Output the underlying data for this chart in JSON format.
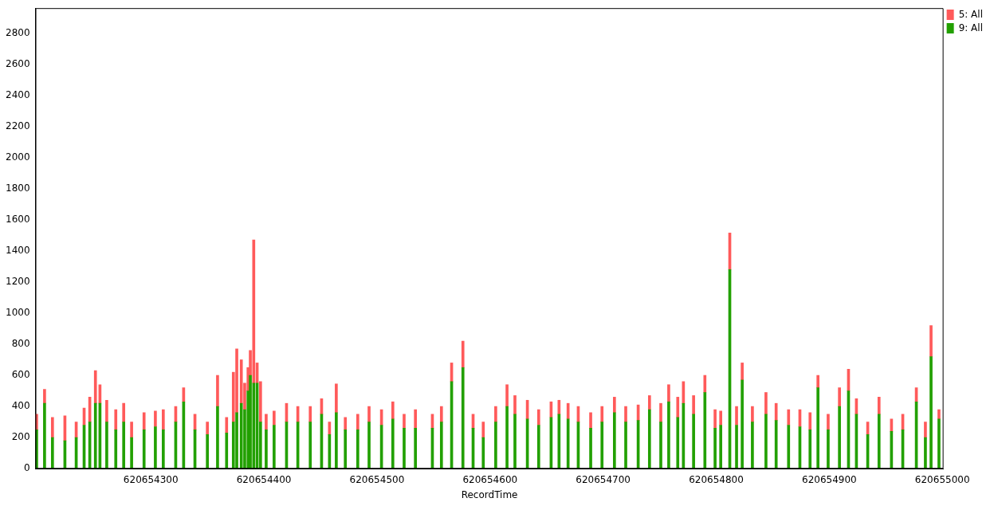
{
  "chart_data": {
    "type": "bar",
    "stacked": true,
    "xlabel": "RecordTime",
    "legend": "top right",
    "x": [
      620654199,
      620654206,
      620654213,
      620654224,
      620654234,
      620654241,
      620654246,
      620654251,
      620654255,
      620654261,
      620654269,
      620654276,
      620654283,
      620654294,
      620654304,
      620654311,
      620654322,
      620654329,
      620654339,
      620654350,
      620654359,
      620654367,
      620654373,
      620654376,
      620654380,
      620654383,
      620654386,
      620654388,
      620654391,
      620654394,
      620654397,
      620654402,
      620654409,
      620654420,
      620654430,
      620654441,
      620654451,
      620654458,
      620654464,
      620654472,
      620654483,
      620654493,
      620654504,
      620654514,
      620654524,
      620654534,
      620654549,
      620654557,
      620654566,
      620654576,
      620654585,
      620654594,
      620654605,
      620654615,
      620654622,
      620654633,
      620654643,
      620654654,
      620654661,
      620654669,
      620654678,
      620654689,
      620654699,
      620654710,
      620654720,
      620654731,
      620654741,
      620654751,
      620654758,
      620654766,
      620654771,
      620654780,
      620654790,
      620654799,
      620654804,
      620654812,
      620654818,
      620654823,
      620654832,
      620654844,
      620654853,
      620654864,
      620654874,
      620654883,
      620654890,
      620654899,
      620654909,
      620654917,
      620654924,
      620654934,
      620654944,
      620654955,
      620654965,
      620654977,
      620654985,
      620654990,
      620654997
    ],
    "series": [
      {
        "name": "9: All",
        "color": "#22a000",
        "values": [
          250,
          420,
          200,
          180,
          200,
          280,
          300,
          420,
          420,
          300,
          250,
          300,
          200,
          250,
          270,
          250,
          300,
          430,
          250,
          220,
          400,
          230,
          300,
          360,
          420,
          380,
          500,
          600,
          550,
          550,
          300,
          250,
          280,
          300,
          300,
          300,
          350,
          220,
          360,
          250,
          250,
          300,
          280,
          320,
          260,
          260,
          260,
          300,
          560,
          650,
          260,
          200,
          300,
          400,
          350,
          320,
          280,
          330,
          350,
          320,
          300,
          260,
          300,
          360,
          300,
          310,
          380,
          300,
          430,
          330,
          420,
          350,
          490,
          260,
          280,
          1280,
          280,
          570,
          300,
          350,
          310,
          280,
          270,
          250,
          520,
          250,
          400,
          500,
          350,
          220,
          350,
          240,
          250,
          430,
          200,
          720,
          320
        ]
      },
      {
        "name": "5: All",
        "color": "#ff5a5a",
        "values": [
          100,
          90,
          130,
          160,
          100,
          110,
          160,
          210,
          120,
          140,
          130,
          120,
          100,
          110,
          100,
          130,
          100,
          90,
          100,
          80,
          200,
          100,
          320,
          410,
          280,
          170,
          150,
          160,
          920,
          130,
          260,
          100,
          90,
          120,
          100,
          100,
          100,
          80,
          185,
          80,
          100,
          100,
          100,
          110,
          90,
          120,
          90,
          100,
          120,
          170,
          90,
          100,
          100,
          140,
          120,
          120,
          100,
          100,
          90,
          100,
          100,
          100,
          100,
          100,
          100,
          100,
          90,
          120,
          110,
          130,
          140,
          120,
          110,
          120,
          90,
          235,
          120,
          110,
          100,
          140,
          110,
          100,
          110,
          110,
          80,
          100,
          120,
          140,
          100,
          80,
          110,
          80,
          100,
          90,
          100,
          200,
          60
        ]
      }
    ],
    "xlim": [
      620654198,
      620655001
    ],
    "xticks": [
      620654300,
      620654400,
      620654500,
      620654600,
      620654700,
      620654800,
      620654900,
      620655000
    ],
    "ylim": [
      0,
      2960
    ],
    "yticks": [
      0,
      200,
      400,
      600,
      800,
      1000,
      1200,
      1400,
      1600,
      1800,
      2000,
      2200,
      2400,
      2600,
      2800
    ]
  }
}
